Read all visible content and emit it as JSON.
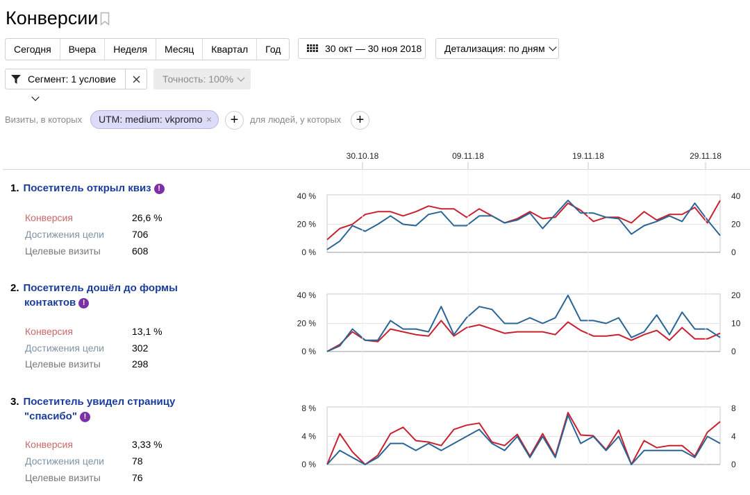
{
  "page": {
    "title": "Конверсии",
    "periods": [
      "Сегодня",
      "Вчера",
      "Неделя",
      "Месяц",
      "Квартал",
      "Год"
    ],
    "date_range": "30 окт — 30 ноя 2018",
    "detail": "Детализация: по дням",
    "segment": "Сегмент: 1 условие",
    "accuracy": "Точность: 100%",
    "filter_visits_label": "Визиты, в которых",
    "utm_chip": "UTM: medium: vkpromo",
    "filter_people_label": "для людей, у которых",
    "close_glyph": "×",
    "plus_glyph": "+"
  },
  "colors": {
    "conversion": "#c8202f",
    "visits": "#2a6496",
    "title": "#1a3c9c",
    "badge": "#7d2fa5"
  },
  "chart_data": {
    "type": "line",
    "x_ticks": [
      "30.10.18",
      "09.11.18",
      "19.11.18",
      "29.11.18"
    ],
    "metric_labels": [
      "Конверсия",
      "Достижения цели",
      "Целевые визиты"
    ],
    "goals": [
      {
        "number": "1.",
        "title_lines": [
          "Посетитель открыл квиз"
        ],
        "conversion": "26,6 %",
        "achievements": "706",
        "visits": "608",
        "left_axis": [
          "40 %",
          "20 %",
          "0 %"
        ],
        "right_axis": [
          "40",
          "20",
          "0"
        ],
        "ylim_left": [
          0,
          40
        ],
        "ylim_right": [
          0,
          40
        ],
        "series": [
          {
            "name": "Конверсия",
            "axis": "left",
            "values": [
              9,
              17,
              20,
              27,
              29,
              29,
              26,
              29,
              33,
              31,
              31,
              25,
              31,
              26,
              21,
              24,
              29,
              24,
              25,
              35,
              30,
              22,
              25,
              25,
              21,
              29,
              23,
              27,
              27,
              32,
              21,
              37
            ]
          },
          {
            "name": "Целевые визиты",
            "axis": "right",
            "values": [
              2,
              8,
              19,
              15,
              20,
              26,
              20,
              19,
              27,
              29,
              19,
              19,
              26,
              26,
              21,
              23,
              28,
              17,
              27,
              37,
              28,
              28,
              25,
              24,
              13,
              19,
              22,
              26,
              22,
              35,
              23,
              12
            ]
          }
        ]
      },
      {
        "number": "2.",
        "title_lines": [
          "Посетитель дошёл до формы",
          "контактов"
        ],
        "conversion": "13,1 %",
        "achievements": "302",
        "visits": "298",
        "left_axis": [
          "40 %",
          "20 %",
          "0 %"
        ],
        "right_axis": [
          "20",
          "10",
          "0"
        ],
        "ylim_left": [
          0,
          40
        ],
        "ylim_right": [
          0,
          20
        ],
        "series": [
          {
            "name": "Конверсия",
            "axis": "left",
            "values": [
              0,
              5,
              14,
              8,
              7,
              16,
              14,
              12,
              11,
              22,
              11,
              17,
              19,
              16,
              13,
              14,
              14,
              14,
              12,
              21,
              15,
              11,
              11,
              12,
              8,
              12,
              15,
              8,
              17,
              9,
              9,
              13
            ]
          },
          {
            "name": "Целевые визиты",
            "axis": "right",
            "values": [
              0,
              2,
              8,
              4,
              4,
              11,
              8,
              8,
              7,
              16,
              6,
              12,
              16,
              15,
              10,
              10,
              12,
              10,
              12,
              20,
              11,
              11,
              10,
              12,
              5,
              7,
              13,
              6,
              14,
              8,
              8,
              5
            ]
          }
        ]
      },
      {
        "number": "3.",
        "title_lines": [
          "Посетитель увидел страницу",
          "\"спасибо\""
        ],
        "conversion": "3,33 %",
        "achievements": "78",
        "visits": "76",
        "left_axis": [
          "8 %",
          "4 %",
          "0 %"
        ],
        "right_axis": [
          "8",
          "4",
          "0"
        ],
        "ylim_left": [
          0,
          8
        ],
        "ylim_right": [
          0,
          8
        ],
        "series": [
          {
            "name": "Конверсия",
            "axis": "left",
            "values": [
              0,
              4.4,
              1.8,
              0,
              1.3,
              4.4,
              5.3,
              3.4,
              3.2,
              2.7,
              5,
              5.6,
              5.9,
              3.2,
              2.7,
              4.3,
              1.2,
              4.4,
              1.2,
              7.4,
              4.2,
              4.1,
              2.1,
              4.9,
              0,
              3.4,
              2.4,
              2.7,
              2.7,
              1.2,
              4.6,
              6.1
            ]
          },
          {
            "name": "Целевые визиты",
            "axis": "right",
            "values": [
              0,
              2,
              1,
              0,
              1,
              3,
              3,
              2,
              3,
              2,
              3,
              4,
              5,
              3,
              2,
              4,
              1,
              4,
              1,
              7,
              3,
              4,
              2,
              4,
              0,
              2,
              2,
              2,
              2,
              1,
              4,
              3
            ]
          }
        ]
      }
    ]
  }
}
